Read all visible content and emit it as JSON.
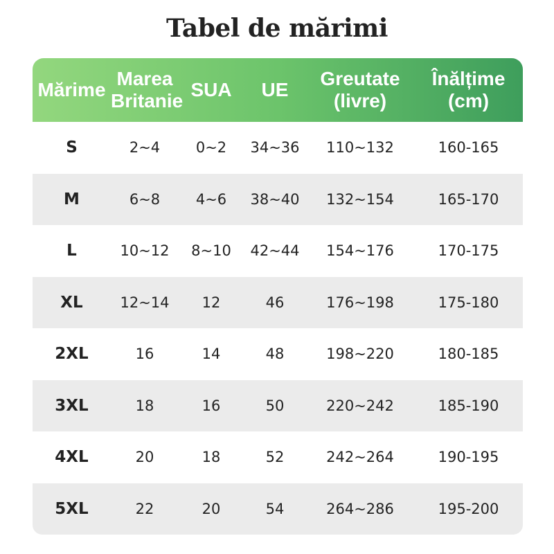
{
  "title": "Tabel de mărimi",
  "table": {
    "headers": [
      "Mărime",
      "Marea\nBritanie",
      "SUA",
      "UE",
      "Greutate\n(livre)",
      "Înălțime\n(cm)"
    ],
    "rows": [
      [
        "S",
        "2~4",
        "0~2",
        "34~36",
        "110~132",
        "160-165"
      ],
      [
        "M",
        "6~8",
        "4~6",
        "38~40",
        "132~154",
        "165-170"
      ],
      [
        "L",
        "10~12",
        "8~10",
        "42~44",
        "154~176",
        "170-175"
      ],
      [
        "XL",
        "12~14",
        "12",
        "46",
        "176~198",
        "175-180"
      ],
      [
        "2XL",
        "16",
        "14",
        "48",
        "198~220",
        "180-185"
      ],
      [
        "3XL",
        "18",
        "16",
        "50",
        "220~242",
        "185-190"
      ],
      [
        "4XL",
        "20",
        "18",
        "52",
        "242~264",
        "190-195"
      ],
      [
        "5XL",
        "22",
        "20",
        "54",
        "264~286",
        "195-200"
      ]
    ]
  }
}
